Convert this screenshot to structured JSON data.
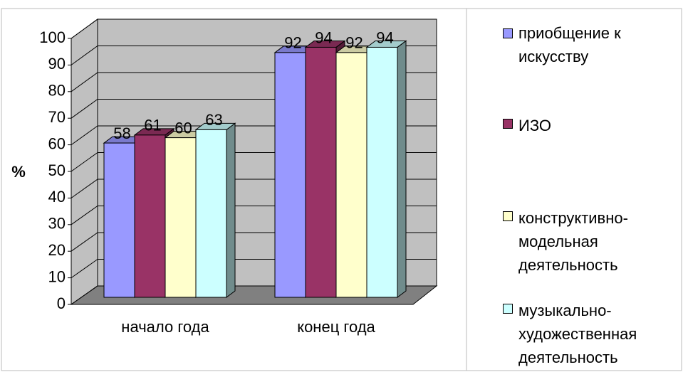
{
  "chart_data": {
    "type": "bar3d",
    "categories": [
      "начало года",
      "конец года"
    ],
    "series": [
      {
        "name": "приобщение к искусству",
        "color": "#9999ff",
        "values": [
          58,
          92
        ]
      },
      {
        "name": "ИЗО",
        "color": "#993366",
        "values": [
          61,
          94
        ]
      },
      {
        "name": "конструктивно-модельная деятельность",
        "color": "#ffffcc",
        "values": [
          60,
          92
        ]
      },
      {
        "name": "музыкально-художественная деятельность",
        "color": "#ccffff",
        "values": [
          63,
          94
        ]
      }
    ],
    "y_label": "%",
    "ylim": [
      0,
      100
    ],
    "yticks": [
      0,
      10,
      20,
      30,
      40,
      50,
      60,
      70,
      80,
      90,
      100
    ],
    "grid": true,
    "legend": "right"
  }
}
